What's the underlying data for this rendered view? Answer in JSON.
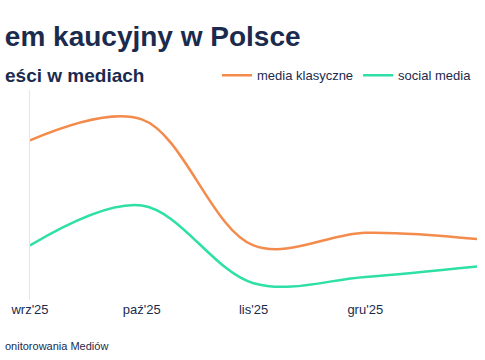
{
  "chart_data": {
    "type": "line",
    "title": "em kaucyjny w Polsce",
    "subtitle": "eści w mediach",
    "source": "onitorowania Mediów",
    "categories": [
      "wrz'25",
      "paź'25",
      "lis'25",
      "gru'25",
      null
    ],
    "series": [
      {
        "name": "media klasyczne",
        "color": "#f28b4b",
        "values": [
          76,
          86,
          26,
          32,
          29
        ]
      },
      {
        "name": "social media",
        "color": "#2edfa6",
        "values": [
          26,
          45,
          8,
          11,
          16
        ]
      }
    ],
    "ylim": [
      0,
      100
    ],
    "yticks": [],
    "grid": false,
    "legend": "top right",
    "tick_labels": "x"
  }
}
